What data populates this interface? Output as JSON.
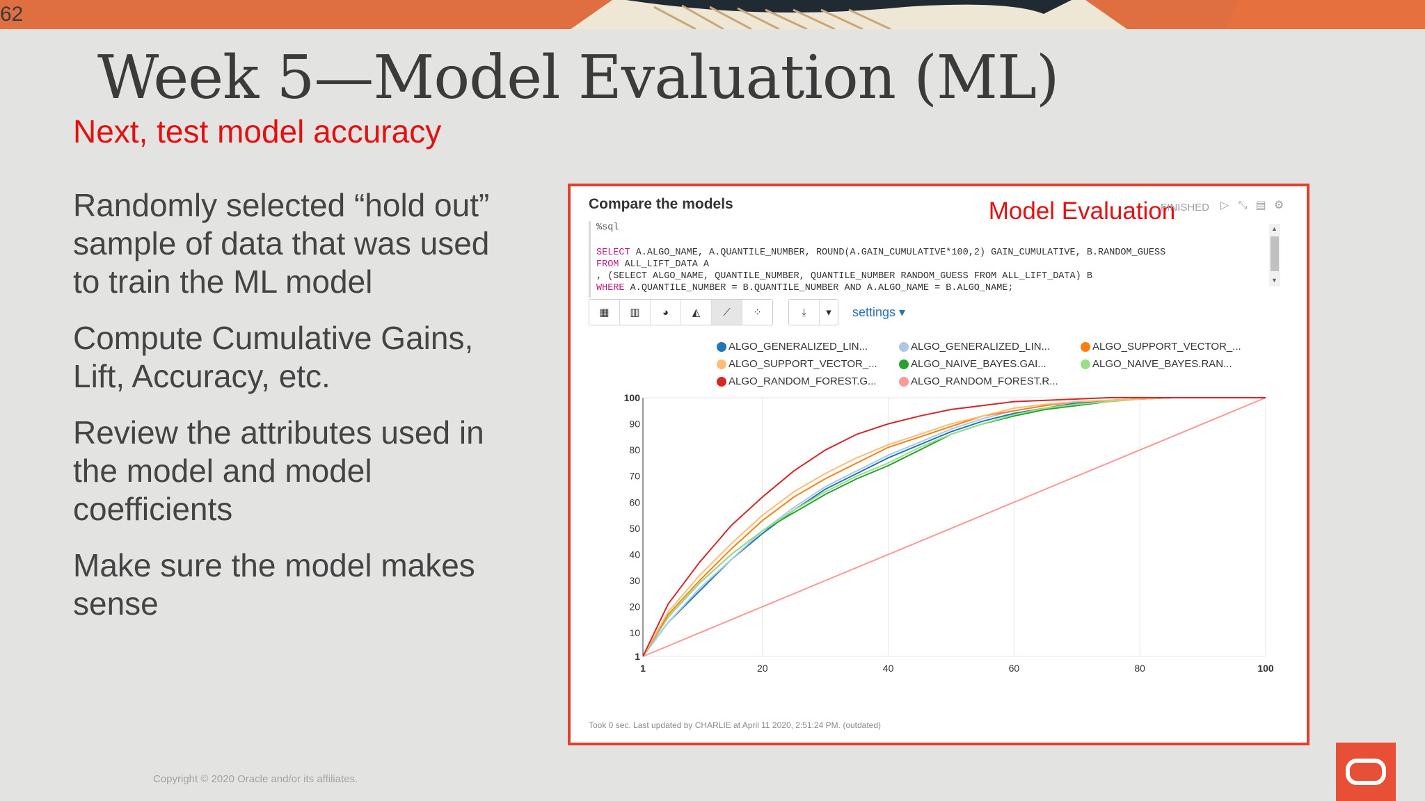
{
  "slide": {
    "number": "62",
    "title": "Week 5—Model Evaluation (ML)",
    "subtitle": "Next, test model accuracy",
    "bullets": [
      "Randomly selected “hold out” sample of data that was used to train the ML model",
      "Compute Cumulative Gains, Lift, Accuracy, etc.",
      "Review the attributes used in the model and  model coefficients",
      "Make sure the model makes sense"
    ],
    "copyright": "Copyright © 2020 Oracle and/or its affiliates."
  },
  "colors": {
    "title": "#3b3b3b",
    "accent_red": "#e3100f",
    "frame_border": "#e0402c",
    "oracle_red": "#e84f37"
  },
  "notebook": {
    "paragraph_title": "Compare the models",
    "label": "Model Evaluation",
    "status": "FINISHED",
    "tool_icons": [
      "run-icon",
      "hide-code-icon",
      "book-icon",
      "gear-icon"
    ],
    "code": {
      "lang": "%sql",
      "lines": [
        "SELECT A.ALGO_NAME, A.QUANTILE_NUMBER, ROUND(A.GAIN_CUMULATIVE*100,2) GAIN_CUMULATIVE, B.RANDOM_GUESS",
        "FROM ALL_LIFT_DATA A",
        ", (SELECT ALGO_NAME, QUANTILE_NUMBER, QUANTILE_NUMBER RANDOM_GUESS FROM ALL_LIFT_DATA) B",
        "WHERE A.QUANTILE_NUMBER = B.QUANTILE_NUMBER AND A.ALGO_NAME = B.ALGO_NAME;"
      ]
    },
    "toolbar": {
      "views": [
        "table-icon",
        "bar-chart-icon",
        "pie-chart-icon",
        "area-chart-icon",
        "line-chart-icon",
        "scatter-chart-icon"
      ],
      "active_view": "line-chart-icon",
      "download": "download-icon",
      "dropdown": "caret-down-icon",
      "settings_label": "settings ▾"
    },
    "footer": "Took 0 sec. Last updated by CHARLIE at April 11 2020, 2:51:24 PM. (outdated)"
  },
  "chart_data": {
    "type": "line",
    "x_ticks": [
      "1",
      "20",
      "40",
      "60",
      "80",
      "100"
    ],
    "y_ticks": [
      "1",
      "10",
      "20",
      "30",
      "40",
      "50",
      "60",
      "70",
      "80",
      "90",
      "100"
    ],
    "xlim": [
      1,
      100
    ],
    "ylim": [
      1,
      100
    ],
    "grid": "vertical",
    "legend_position": "top",
    "x": [
      1,
      5,
      10,
      15,
      20,
      25,
      30,
      35,
      40,
      45,
      50,
      55,
      60,
      65,
      70,
      75,
      80,
      85,
      90,
      95,
      100
    ],
    "series": [
      {
        "name": "ALGO_GENERALIZED_LIN...",
        "color": "#1f77b4",
        "values": [
          1,
          14,
          26,
          38,
          48,
          57,
          65,
          71,
          77,
          82,
          87,
          91,
          94,
          96,
          98,
          99,
          99.5,
          100,
          100,
          100,
          100
        ]
      },
      {
        "name": "ALGO_GENERALIZED_LIN...",
        "color": "#aec7e8",
        "values": [
          1,
          14,
          27,
          38,
          49,
          58,
          66,
          72,
          78,
          83,
          88,
          92,
          95,
          97,
          98.5,
          99,
          99.5,
          100,
          100,
          100,
          100
        ]
      },
      {
        "name": "ALGO_SUPPORT_VECTOR_...",
        "color": "#ff7f0e",
        "values": [
          1,
          17,
          30,
          42,
          53,
          62,
          69,
          75,
          81,
          85,
          89,
          93,
          95,
          97,
          98.5,
          99,
          99.5,
          100,
          100,
          100,
          100
        ]
      },
      {
        "name": "ALGO_SUPPORT_VECTOR_...",
        "color": "#ffbb78",
        "values": [
          1,
          18,
          32,
          44,
          55,
          64,
          71,
          77,
          82,
          86,
          90,
          93,
          96,
          97.5,
          98.5,
          99,
          99.5,
          100,
          100,
          100,
          100
        ]
      },
      {
        "name": "ALGO_NAIVE_BAYES.GAI...",
        "color": "#2ca02c",
        "values": [
          1,
          16,
          29,
          40,
          49,
          56,
          63,
          69,
          74,
          80,
          86,
          90,
          93,
          95.5,
          97,
          98.5,
          99.5,
          100,
          100,
          100,
          100
        ]
      },
      {
        "name": "ALGO_NAIVE_BAYES.RAN...",
        "color": "#98df8a",
        "values": [
          1,
          16,
          29,
          40,
          49,
          57,
          64,
          70,
          75,
          81,
          86,
          90,
          93.5,
          96,
          97.5,
          98.5,
          99.5,
          100,
          100,
          100,
          100
        ]
      },
      {
        "name": "ALGO_RANDOM_FOREST.G...",
        "color": "#d62728",
        "values": [
          1,
          21,
          37,
          51,
          62,
          72,
          80,
          86,
          90,
          93,
          95.5,
          97,
          98.5,
          99,
          99.5,
          100,
          100,
          100,
          100,
          100,
          100
        ]
      },
      {
        "name": "ALGO_RANDOM_FOREST.R...",
        "color": "#ff9896",
        "values": [
          1,
          5,
          10,
          15,
          20,
          25,
          30,
          35,
          40,
          45,
          50,
          55,
          60,
          65,
          70,
          75,
          80,
          85,
          90,
          95,
          100
        ]
      }
    ]
  }
}
